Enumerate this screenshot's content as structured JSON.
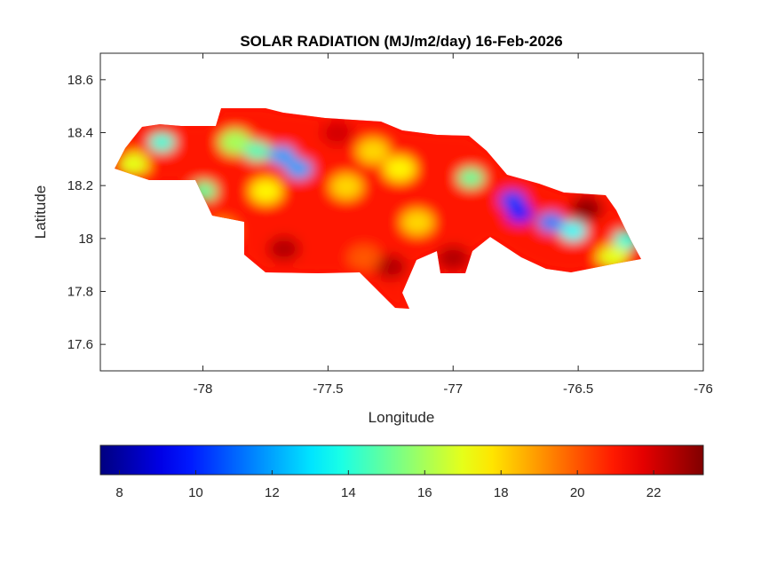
{
  "chart_data": {
    "type": "heatmap",
    "title": "SOLAR RADIATION (MJ/m2/day) 16-Feb-2026",
    "xlabel": "Longitude",
    "ylabel": "Latitude",
    "xlim": [
      -78.41,
      -76
    ],
    "ylim": [
      17.5,
      18.7
    ],
    "xticks": [
      "-78",
      "-77.5",
      "-77",
      "-76.5",
      "-76"
    ],
    "xtick_values": [
      -78,
      -77.5,
      -77,
      -76.5,
      -76
    ],
    "yticks": [
      "18.6",
      "18.4",
      "18.2",
      "18",
      "17.8",
      "17.6"
    ],
    "ytick_values": [
      18.6,
      18.4,
      18.2,
      18,
      17.8,
      17.6
    ],
    "grid": false,
    "colormap": "jet",
    "colorbar": {
      "location": "bottom",
      "clim": [
        7.5,
        23.3
      ],
      "ticks": [
        "8",
        "10",
        "12",
        "14",
        "16",
        "18",
        "20",
        "22"
      ],
      "tick_values": [
        8,
        10,
        12,
        14,
        16,
        18,
        20,
        22
      ]
    },
    "base_value": 21,
    "field_samples": [
      {
        "lon": -78.164,
        "lat": 18.364,
        "value": 14
      },
      {
        "lon": -78.281,
        "lat": 18.28,
        "value": 17
      },
      {
        "lon": -77.997,
        "lat": 18.179,
        "value": 15
      },
      {
        "lon": -77.872,
        "lat": 18.364,
        "value": 16
      },
      {
        "lon": -77.783,
        "lat": 18.33,
        "value": 14.5
      },
      {
        "lon": -77.683,
        "lat": 18.313,
        "value": 12
      },
      {
        "lon": -77.616,
        "lat": 18.263,
        "value": 12
      },
      {
        "lon": -77.748,
        "lat": 18.179,
        "value": 17.5
      },
      {
        "lon": -77.925,
        "lat": 18.028,
        "value": 19
      },
      {
        "lon": -77.676,
        "lat": 17.961,
        "value": 22.5
      },
      {
        "lon": -77.25,
        "lat": 17.893,
        "value": 22.5
      },
      {
        "lon": -77.0,
        "lat": 17.927,
        "value": 22.5
      },
      {
        "lon": -77.463,
        "lat": 18.397,
        "value": 22
      },
      {
        "lon": -77.356,
        "lat": 17.927,
        "value": 20
      },
      {
        "lon": -77.427,
        "lat": 18.196,
        "value": 18
      },
      {
        "lon": -77.32,
        "lat": 18.33,
        "value": 18
      },
      {
        "lon": -77.143,
        "lat": 18.061,
        "value": 18
      },
      {
        "lon": -77.213,
        "lat": 18.263,
        "value": 17.5
      },
      {
        "lon": -76.929,
        "lat": 18.229,
        "value": 15
      },
      {
        "lon": -76.762,
        "lat": 18.145,
        "value": 10.5
      },
      {
        "lon": -76.733,
        "lat": 18.095,
        "value": 10
      },
      {
        "lon": -76.609,
        "lat": 18.061,
        "value": 11.5
      },
      {
        "lon": -76.52,
        "lat": 18.028,
        "value": 13.5
      },
      {
        "lon": -76.466,
        "lat": 18.112,
        "value": 23
      },
      {
        "lon": -76.306,
        "lat": 17.994,
        "value": 14
      },
      {
        "lon": -76.36,
        "lat": 17.927,
        "value": 17
      }
    ]
  }
}
